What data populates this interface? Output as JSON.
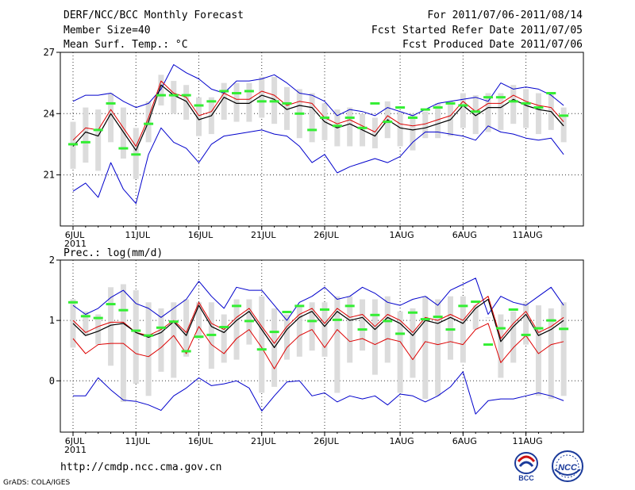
{
  "header": {
    "title": "DERF/NCC/BCC Monthly Forecast",
    "member_size": "Member Size=40",
    "variable": "Mean Surf. Temp.: °C",
    "period": "For 2011/07/06-2011/08/14",
    "started": "Fcst Started Refer Date 2011/07/05",
    "produced": "Fcst Produced Date 2011/07/06"
  },
  "footer": {
    "url": "http://cmdp.ncc.cma.gov.cn",
    "grads": "GrADS: COLA/IGES",
    "logo_bcc_text": "BCC",
    "logo_ncc_text": "NCC"
  },
  "colors": {
    "box": "#dcdcdc",
    "obs_mark": "#33ee33",
    "envelope": "#0000cc",
    "mean": "#000000",
    "median": "#dd0000",
    "grid": "#333333"
  },
  "chart_data": [
    {
      "type": "line",
      "title": "Mean Surf. Temp.: °C",
      "days": 40,
      "x_ticks": [
        {
          "day": 0,
          "label": "6JUL"
        },
        {
          "day": 5,
          "label": "11JUL"
        },
        {
          "day": 10,
          "label": "16JUL"
        },
        {
          "day": 15,
          "label": "21JUL"
        },
        {
          "day": 20,
          "label": "26JUL"
        },
        {
          "day": 26,
          "label": "1AUG"
        },
        {
          "day": 31,
          "label": "6AUG"
        },
        {
          "day": 36,
          "label": "11AUG"
        }
      ],
      "year_label": "2011",
      "ylim": [
        18.5,
        27
      ],
      "y_ticks": [
        21,
        24,
        27
      ],
      "series": [
        {
          "name": "max",
          "values": [
            24.6,
            24.9,
            24.9,
            25.0,
            24.6,
            24.3,
            24.5,
            25.2,
            26.4,
            26.0,
            25.7,
            25.2,
            25.0,
            25.6,
            25.6,
            25.7,
            25.9,
            25.5,
            25.0,
            24.9,
            24.6,
            23.9,
            24.2,
            24.1,
            23.9,
            24.3,
            24.1,
            23.9,
            24.2,
            24.5,
            24.6,
            24.7,
            24.8,
            24.6,
            25.5,
            25.2,
            25.3,
            25.2,
            24.9,
            24.4
          ]
        },
        {
          "name": "min",
          "values": [
            20.2,
            20.6,
            19.9,
            21.6,
            20.3,
            19.6,
            22.0,
            23.3,
            22.6,
            22.3,
            21.6,
            22.5,
            22.9,
            23.0,
            23.1,
            23.2,
            23.0,
            22.9,
            22.4,
            21.6,
            22.0,
            21.1,
            21.4,
            21.6,
            21.8,
            21.6,
            21.9,
            22.6,
            23.1,
            23.1,
            23.0,
            22.9,
            22.7,
            23.4,
            23.1,
            23.0,
            22.8,
            22.7,
            22.8,
            22.0
          ]
        },
        {
          "name": "mean",
          "values": [
            22.4,
            23.1,
            22.9,
            24.0,
            23.1,
            22.2,
            23.6,
            25.4,
            24.9,
            24.6,
            23.7,
            23.9,
            24.8,
            24.5,
            24.5,
            24.9,
            24.7,
            24.2,
            24.4,
            24.3,
            23.6,
            23.3,
            23.5,
            23.2,
            22.9,
            23.7,
            23.3,
            23.2,
            23.3,
            23.5,
            23.7,
            24.4,
            23.9,
            24.3,
            24.3,
            24.7,
            24.4,
            24.2,
            24.1,
            23.4
          ]
        },
        {
          "name": "median",
          "values": [
            22.7,
            23.3,
            23.2,
            24.2,
            23.3,
            22.4,
            23.8,
            25.6,
            25.0,
            24.8,
            23.9,
            24.1,
            25.0,
            24.7,
            24.7,
            25.1,
            24.9,
            24.4,
            24.6,
            24.5,
            23.8,
            23.5,
            23.7,
            23.4,
            23.1,
            23.9,
            23.5,
            23.4,
            23.5,
            23.7,
            23.9,
            24.6,
            24.1,
            24.5,
            24.5,
            24.9,
            24.6,
            24.4,
            24.3,
            23.6
          ]
        },
        {
          "name": "box_low",
          "values": [
            21.3,
            21.6,
            21.2,
            22.6,
            21.8,
            20.8,
            22.6,
            24.4,
            24.0,
            23.7,
            22.9,
            23.0,
            23.7,
            23.6,
            23.6,
            23.8,
            23.5,
            23.2,
            22.8,
            22.6,
            22.7,
            22.4,
            22.4,
            22.4,
            22.3,
            22.8,
            22.4,
            22.2,
            22.8,
            22.8,
            22.9,
            23.3,
            23.0,
            23.1,
            23.2,
            23.5,
            23.3,
            23.0,
            23.2,
            22.6
          ]
        },
        {
          "name": "box_high",
          "values": [
            23.6,
            24.3,
            24.2,
            25.0,
            24.3,
            23.3,
            24.6,
            25.9,
            25.6,
            25.4,
            24.8,
            24.8,
            25.5,
            25.5,
            25.5,
            25.8,
            25.8,
            25.3,
            25.2,
            25.0,
            24.5,
            24.2,
            24.3,
            24.0,
            23.8,
            24.6,
            24.1,
            24.0,
            24.1,
            24.5,
            24.6,
            25.0,
            24.9,
            25.0,
            25.0,
            25.4,
            25.2,
            25.0,
            25.0,
            24.3
          ]
        },
        {
          "name": "observation",
          "values": [
            22.5,
            22.6,
            23.2,
            24.5,
            22.3,
            22.0,
            23.5,
            24.9,
            24.9,
            24.9,
            24.4,
            24.6,
            25.1,
            25.0,
            25.1,
            24.6,
            24.6,
            24.5,
            24.0,
            23.2,
            23.8,
            23.4,
            23.8,
            23.3,
            24.5,
            23.6,
            24.3,
            23.8,
            24.2,
            24.3,
            24.5,
            24.4,
            24.1,
            24.8,
            24.8,
            24.6,
            24.5,
            24.3,
            25.0,
            23.9
          ]
        }
      ]
    },
    {
      "type": "line",
      "title": "Prec.: log(mm/d)",
      "days": 40,
      "x_ticks": [
        {
          "day": 0,
          "label": "6JUL"
        },
        {
          "day": 5,
          "label": "11JUL"
        },
        {
          "day": 10,
          "label": "16JUL"
        },
        {
          "day": 15,
          "label": "21JUL"
        },
        {
          "day": 20,
          "label": "26JUL"
        },
        {
          "day": 26,
          "label": "1AUG"
        },
        {
          "day": 31,
          "label": "6AUG"
        },
        {
          "day": 36,
          "label": "11AUG"
        }
      ],
      "year_label": "2011",
      "ylim": [
        -0.85,
        2
      ],
      "y_ticks": [
        0,
        1,
        2
      ],
      "series": [
        {
          "name": "max",
          "values": [
            1.25,
            1.1,
            1.2,
            1.38,
            1.5,
            1.28,
            1.2,
            1.05,
            1.2,
            1.35,
            1.65,
            1.4,
            1.2,
            1.55,
            1.5,
            1.5,
            1.25,
            1.0,
            1.3,
            1.4,
            1.55,
            1.35,
            1.4,
            1.55,
            1.45,
            1.3,
            1.25,
            1.35,
            1.4,
            1.25,
            1.5,
            1.6,
            1.7,
            1.1,
            1.4,
            1.3,
            1.25,
            1.4,
            1.55,
            1.25
          ]
        },
        {
          "name": "min",
          "values": [
            -0.25,
            -0.25,
            0.05,
            -0.15,
            -0.32,
            -0.34,
            -0.4,
            -0.49,
            -0.25,
            -0.12,
            0.05,
            -0.08,
            -0.05,
            0.0,
            -0.12,
            -0.5,
            -0.25,
            -0.02,
            0.0,
            -0.25,
            -0.2,
            -0.35,
            -0.25,
            -0.3,
            -0.25,
            -0.4,
            -0.22,
            -0.25,
            -0.35,
            -0.25,
            -0.1,
            0.15,
            -0.55,
            -0.33,
            -0.3,
            -0.3,
            -0.25,
            -0.2,
            -0.25,
            -0.33
          ]
        },
        {
          "name": "mean",
          "values": [
            0.95,
            0.75,
            0.82,
            0.92,
            0.95,
            0.8,
            0.72,
            0.8,
            0.98,
            0.75,
            1.25,
            0.9,
            0.8,
            1.0,
            1.15,
            0.85,
            0.55,
            0.85,
            1.05,
            1.15,
            0.9,
            1.15,
            1.0,
            1.05,
            0.85,
            1.05,
            0.95,
            0.75,
            1.0,
            0.95,
            1.05,
            0.95,
            1.2,
            1.35,
            0.65,
            0.9,
            1.1,
            0.75,
            0.85,
            1.0
          ]
        },
        {
          "name": "median",
          "values": [
            1.0,
            0.8,
            0.9,
            0.97,
            0.97,
            0.8,
            0.75,
            0.85,
            1.0,
            0.8,
            1.3,
            0.95,
            0.85,
            1.05,
            1.2,
            0.9,
            0.62,
            0.9,
            1.1,
            1.2,
            0.95,
            1.2,
            1.05,
            1.1,
            0.9,
            1.1,
            1.0,
            0.8,
            1.05,
            1.0,
            1.1,
            1.0,
            1.25,
            1.4,
            0.7,
            0.95,
            1.15,
            0.8,
            0.9,
            1.05
          ]
        },
        {
          "name": "lower",
          "values": [
            0.7,
            0.45,
            0.6,
            0.62,
            0.62,
            0.45,
            0.4,
            0.55,
            0.75,
            0.45,
            0.9,
            0.6,
            0.45,
            0.7,
            0.85,
            0.55,
            0.2,
            0.55,
            0.75,
            0.85,
            0.55,
            0.85,
            0.65,
            0.7,
            0.6,
            0.7,
            0.65,
            0.35,
            0.65,
            0.6,
            0.65,
            0.6,
            0.85,
            0.95,
            0.3,
            0.55,
            0.75,
            0.45,
            0.6,
            0.65
          ]
        },
        {
          "name": "box_low",
          "values": [
            0.55,
            0.75,
            0.6,
            0.25,
            -0.35,
            -0.05,
            -0.25,
            0.15,
            0.05,
            0.4,
            0.7,
            0.2,
            0.3,
            0.35,
            0.6,
            -0.2,
            -0.1,
            0.35,
            0.4,
            0.5,
            0.4,
            -0.2,
            0.3,
            0.5,
            0.1,
            0.3,
            -0.2,
            0.05,
            -0.3,
            -0.25,
            0.35,
            0.3,
            0.85,
            1.05,
            0.05,
            0.3,
            0.6,
            -0.25,
            -0.3,
            -0.25
          ]
        },
        {
          "name": "box_high",
          "values": [
            1.35,
            1.15,
            1.1,
            1.55,
            1.6,
            1.5,
            1.3,
            1.2,
            1.3,
            1.35,
            1.3,
            1.3,
            1.1,
            1.35,
            1.35,
            1.4,
            1.2,
            1.1,
            1.25,
            1.3,
            1.3,
            1.4,
            1.4,
            1.35,
            1.35,
            1.4,
            1.15,
            1.2,
            1.4,
            1.35,
            1.4,
            1.4,
            1.25,
            1.05,
            1.1,
            1.15,
            1.3,
            1.25,
            1.2,
            1.3
          ]
        },
        {
          "name": "observation",
          "values": [
            1.3,
            1.07,
            1.04,
            1.27,
            1.17,
            0.83,
            0.75,
            0.88,
            0.98,
            0.49,
            0.73,
            0.76,
            0.89,
            1.24,
            0.99,
            0.52,
            0.81,
            1.14,
            1.24,
            0.99,
            1.18,
            1.01,
            1.24,
            0.85,
            1.09,
            0.99,
            0.78,
            1.13,
            1.02,
            1.06,
            0.85,
            1.24,
            1.31,
            0.6,
            0.87,
            1.18,
            0.76,
            0.87,
            1.0,
            0.86
          ]
        }
      ]
    }
  ]
}
